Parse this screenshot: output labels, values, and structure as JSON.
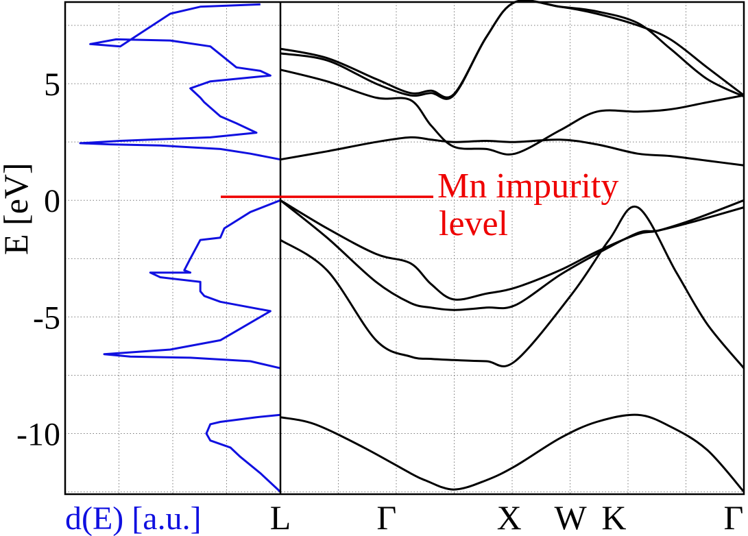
{
  "chart_data": [
    {
      "type": "line",
      "panel": "density-of-states",
      "xlabel": "d(E) [a.u.]",
      "ylabel": "E [eV]",
      "ylim": [
        -12.6,
        8.5
      ],
      "yticks": [
        5,
        0,
        -5,
        -10
      ],
      "ytick_labels": [
        "5",
        "0",
        "-5",
        "-10"
      ],
      "grid": true,
      "line_color": "#1010e0",
      "series": [
        {
          "points": [
            [
              0.1,
              8.4
            ],
            [
              0.4,
              8.3
            ],
            [
              0.55,
              8.0
            ],
            [
              0.8,
              6.6
            ],
            [
              0.95,
              6.7
            ],
            [
              0.82,
              6.9
            ],
            [
              0.55,
              6.85
            ],
            [
              0.35,
              6.6
            ],
            [
              0.22,
              5.7
            ],
            [
              0.1,
              5.55
            ],
            [
              0.05,
              5.35
            ],
            [
              0.35,
              5.1
            ],
            [
              0.45,
              4.8
            ],
            [
              0.4,
              4.4
            ],
            [
              0.38,
              4.2
            ],
            [
              0.3,
              3.6
            ],
            [
              0.22,
              3.3
            ],
            [
              0.12,
              2.9
            ],
            [
              0.35,
              2.7
            ],
            [
              0.6,
              2.62
            ],
            [
              0.8,
              2.55
            ],
            [
              1.0,
              2.45
            ],
            [
              0.85,
              2.4
            ],
            [
              0.6,
              2.35
            ],
            [
              0.3,
              2.2
            ],
            [
              0.15,
              2.0
            ],
            [
              0.0,
              1.75
            ]
          ]
        },
        {
          "points": [
            [
              0.0,
              0.0
            ],
            [
              0.15,
              -0.5
            ],
            [
              0.28,
              -1.2
            ],
            [
              0.3,
              -1.6
            ],
            [
              0.4,
              -1.7
            ],
            [
              0.45,
              -2.5
            ],
            [
              0.48,
              -3.0
            ],
            [
              0.45,
              -3.1
            ],
            [
              0.65,
              -3.1
            ],
            [
              0.6,
              -3.3
            ],
            [
              0.4,
              -3.5
            ],
            [
              0.4,
              -3.9
            ],
            [
              0.38,
              -4.1
            ],
            [
              0.3,
              -4.35
            ],
            [
              0.05,
              -4.75
            ],
            [
              0.2,
              -5.5
            ],
            [
              0.3,
              -6.0
            ],
            [
              0.55,
              -6.4
            ],
            [
              0.88,
              -6.6
            ],
            [
              0.75,
              -6.7
            ],
            [
              0.45,
              -6.75
            ],
            [
              0.15,
              -6.9
            ],
            [
              0.0,
              -7.2
            ]
          ]
        },
        {
          "points": [
            [
              0.0,
              -9.2
            ],
            [
              0.12,
              -9.3
            ],
            [
              0.3,
              -9.5
            ],
            [
              0.35,
              -9.6
            ],
            [
              0.37,
              -10.0
            ],
            [
              0.35,
              -10.3
            ],
            [
              0.25,
              -10.6
            ],
            [
              0.2,
              -11.0
            ],
            [
              0.1,
              -11.7
            ],
            [
              0.0,
              -12.5
            ]
          ]
        }
      ]
    },
    {
      "type": "line",
      "panel": "band-structure",
      "x_ticks": [
        {
          "label": "L",
          "pos": 0.0
        },
        {
          "label": "Γ",
          "pos": 0.866
        },
        {
          "label": "X",
          "pos": 1.866
        },
        {
          "label": "W",
          "pos": 2.366
        },
        {
          "label": "K",
          "pos": 2.72
        },
        {
          "label": "Γ",
          "pos": 3.78
        }
      ],
      "xlim": [
        0,
        3.78
      ],
      "ylim": [
        -12.6,
        8.5
      ],
      "grid": true,
      "line_color": "#000000",
      "bands": [
        [
          [
            0.0,
            -12.5
          ],
          [
            0.3,
            -10.7
          ],
          [
            0.6,
            -9.7
          ],
          [
            0.866,
            -9.2
          ],
          [
            1.2,
            -9.5
          ],
          [
            1.5,
            -10.2
          ],
          [
            1.866,
            -11.4
          ],
          [
            2.1,
            -12.0
          ],
          [
            2.366,
            -12.4
          ],
          [
            2.6,
            -12.0
          ],
          [
            2.72,
            -11.7
          ],
          [
            3.1,
            -10.6
          ],
          [
            3.5,
            -9.6
          ],
          [
            3.78,
            -9.3
          ]
        ],
        [
          [
            0.0,
            -7.2
          ],
          [
            0.3,
            -5.3
          ],
          [
            0.55,
            -3.1
          ],
          [
            0.866,
            -0.3
          ],
          [
            1.1,
            -1.7
          ],
          [
            1.4,
            -4.0
          ],
          [
            1.866,
            -6.9
          ],
          [
            2.1,
            -6.9
          ],
          [
            2.366,
            -6.85
          ],
          [
            2.55,
            -6.8
          ],
          [
            2.72,
            -6.7
          ],
          [
            3.0,
            -6.0
          ],
          [
            3.4,
            -3.0
          ],
          [
            3.78,
            -1.7
          ]
        ],
        [
          [
            0.0,
            -0.3
          ],
          [
            0.4,
            -0.9
          ],
          [
            0.7,
            -1.3
          ],
          [
            0.866,
            -1.4
          ],
          [
            1.2,
            -2.3
          ],
          [
            1.5,
            -3.2
          ],
          [
            1.866,
            -4.5
          ],
          [
            2.1,
            -4.6
          ],
          [
            2.366,
            -4.7
          ],
          [
            2.55,
            -4.6
          ],
          [
            2.72,
            -4.4
          ],
          [
            3.0,
            -3.5
          ],
          [
            3.4,
            -1.6
          ],
          [
            3.78,
            0.0
          ]
        ],
        [
          [
            0.0,
            0.0
          ],
          [
            0.4,
            -0.8
          ],
          [
            0.7,
            -1.3
          ],
          [
            0.866,
            -1.45
          ],
          [
            1.2,
            -2.2
          ],
          [
            1.5,
            -3.0
          ],
          [
            1.866,
            -3.75
          ],
          [
            2.1,
            -4.0
          ],
          [
            2.366,
            -4.25
          ],
          [
            2.55,
            -3.6
          ],
          [
            2.72,
            -2.7
          ],
          [
            3.0,
            -2.3
          ],
          [
            3.4,
            -1.2
          ],
          [
            3.78,
            0.0
          ]
        ],
        [
          [
            0.0,
            1.5
          ],
          [
            0.3,
            1.7
          ],
          [
            0.6,
            1.9
          ],
          [
            0.866,
            2.0
          ],
          [
            1.2,
            2.4
          ],
          [
            1.5,
            2.6
          ],
          [
            1.866,
            2.5
          ],
          [
            2.1,
            2.55
          ],
          [
            2.366,
            2.5
          ],
          [
            2.55,
            2.6
          ],
          [
            2.72,
            2.7
          ],
          [
            3.0,
            2.5
          ],
          [
            3.4,
            2.1
          ],
          [
            3.78,
            1.75
          ]
        ],
        [
          [
            0.0,
            4.5
          ],
          [
            0.3,
            4.2
          ],
          [
            0.6,
            3.9
          ],
          [
            0.866,
            3.8
          ],
          [
            1.2,
            3.8
          ],
          [
            1.5,
            3.0
          ],
          [
            1.866,
            2.0
          ],
          [
            2.1,
            2.2
          ],
          [
            2.366,
            2.3
          ],
          [
            2.55,
            3.2
          ],
          [
            2.72,
            4.3
          ],
          [
            3.0,
            4.4
          ],
          [
            3.4,
            5.1
          ],
          [
            3.78,
            5.6
          ]
        ],
        [
          [
            0.0,
            4.45
          ],
          [
            0.3,
            5.2
          ],
          [
            0.6,
            6.5
          ],
          [
            0.866,
            7.6
          ],
          [
            1.2,
            8.1
          ],
          [
            1.5,
            8.3
          ],
          [
            1.866,
            8.5
          ],
          [
            2.1,
            7.0
          ],
          [
            2.366,
            4.5
          ],
          [
            2.55,
            4.6
          ],
          [
            2.72,
            4.5
          ],
          [
            3.0,
            5.0
          ],
          [
            3.4,
            6.0
          ],
          [
            3.78,
            6.3
          ]
        ],
        [
          [
            0.0,
            4.5
          ],
          [
            0.3,
            5.7
          ],
          [
            0.6,
            6.9
          ],
          [
            0.866,
            7.5
          ],
          [
            1.2,
            8.0
          ],
          [
            1.5,
            8.3
          ],
          [
            1.866,
            8.5
          ],
          [
            2.1,
            7.0
          ],
          [
            2.366,
            4.55
          ],
          [
            2.55,
            4.7
          ],
          [
            2.72,
            4.6
          ],
          [
            3.0,
            5.2
          ],
          [
            3.4,
            6.1
          ],
          [
            3.78,
            6.5
          ]
        ]
      ],
      "band_x_reversed": true,
      "annotation": {
        "text_lines": [
          "Mn impurity",
          "level"
        ],
        "energy": 0.15,
        "color": "#ee0000"
      }
    }
  ]
}
